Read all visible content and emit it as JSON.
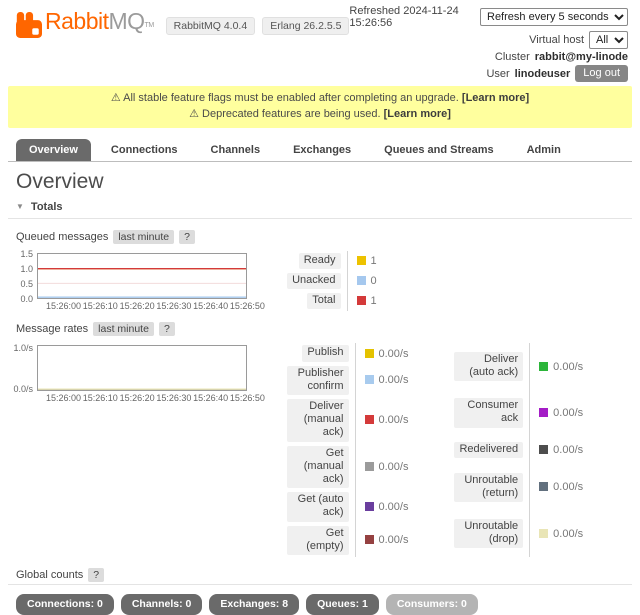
{
  "header": {
    "brand": {
      "rabbit": "Rabbit",
      "mq": "MQ",
      "tm": "TM"
    },
    "version_badges": [
      "RabbitMQ 4.0.4",
      "Erlang 26.2.5.5"
    ],
    "refreshed_label": "Refreshed 2024-11-24 15:26:56",
    "refresh_interval": "Refresh every 5 seconds",
    "virtual_host_label": "Virtual host",
    "virtual_host_value": "All",
    "cluster_label": "Cluster",
    "cluster_value": "rabbit@my-linode",
    "user_label": "User",
    "user_value": "linodeuser",
    "logout_label": "Log out"
  },
  "banner": {
    "warning1_text": "⚠ All stable feature flags must be enabled after completing an upgrade.",
    "warning1_link": "[Learn more]",
    "warning2_text": "⚠ Deprecated features are being used.",
    "warning2_link": "[Learn more]"
  },
  "tabs": [
    {
      "label": "Overview"
    },
    {
      "label": "Connections"
    },
    {
      "label": "Channels"
    },
    {
      "label": "Exchanges"
    },
    {
      "label": "Queues and Streams"
    },
    {
      "label": "Admin"
    }
  ],
  "page_title": "Overview",
  "totals_label": "Totals",
  "queued_section": {
    "title": "Queued messages",
    "range": "last minute",
    "help": "?"
  },
  "rates_section": {
    "title": "Message rates",
    "range": "last minute",
    "help": "?"
  },
  "global_section": {
    "title": "Global counts",
    "help": "?"
  },
  "chart_data": [
    {
      "type": "line",
      "title": "Queued messages",
      "range": "last minute",
      "x_ticks": [
        "15:26:00",
        "15:26:10",
        "15:26:20",
        "15:26:30",
        "15:26:40",
        "15:26:50"
      ],
      "y_ticks": [
        "1.5",
        "1.0",
        "0.5",
        "0.0"
      ],
      "ylim": [
        0,
        1.5
      ],
      "grid_y": [
        0.5,
        1.0
      ],
      "legend_position": "right",
      "series": [
        {
          "name": "Ready",
          "value": 1,
          "display": "1",
          "color": "#edc200"
        },
        {
          "name": "Unacked",
          "value": 0,
          "display": "0",
          "color": "#a5c8ee"
        },
        {
          "name": "Total",
          "value": 1,
          "display": "1",
          "color": "#d43a3a"
        }
      ]
    },
    {
      "type": "line",
      "title": "Message rates",
      "range": "last minute",
      "x_ticks": [
        "15:26:00",
        "15:26:10",
        "15:26:20",
        "15:26:30",
        "15:26:40",
        "15:26:50"
      ],
      "y_ticks": [
        "1.0/s",
        "0.0/s"
      ],
      "ylim": [
        0,
        1
      ],
      "grid_y": [],
      "legend_position": "right",
      "series": [
        {
          "name": "Publish",
          "value": 0,
          "display": "0.00/s",
          "color": "#e4c200"
        },
        {
          "name": "Publisher confirm",
          "value": 0,
          "display": "0.00/s",
          "color": "#a8cbee"
        },
        {
          "name": "Deliver (manual ack)",
          "value": 0,
          "display": "0.00/s",
          "color": "#d43a3a"
        },
        {
          "name": "Get (manual ack)",
          "value": 0,
          "display": "0.00/s",
          "color": "#9b9b9b"
        },
        {
          "name": "Get (auto ack)",
          "value": 0,
          "display": "0.00/s",
          "color": "#6a3e9e"
        },
        {
          "name": "Get (empty)",
          "value": 0,
          "display": "0.00/s",
          "color": "#954141"
        },
        {
          "name": "Deliver (auto ack)",
          "value": 0,
          "display": "0.00/s",
          "color": "#2cb53a"
        },
        {
          "name": "Consumer ack",
          "value": 0,
          "display": "0.00/s",
          "color": "#a41cc6"
        },
        {
          "name": "Redelivered",
          "value": 0,
          "display": "0.00/s",
          "color": "#4d4d4d"
        },
        {
          "name": "Unroutable (return)",
          "value": 0,
          "display": "0.00/s",
          "color": "#62707e"
        },
        {
          "name": "Unroutable (drop)",
          "value": 0,
          "display": "0.00/s",
          "color": "#e9e5b6"
        }
      ]
    }
  ],
  "global_counts": {
    "connections": "Connections: 0",
    "channels": "Channels: 0",
    "exchanges": "Exchanges: 8",
    "queues": "Queues: 1",
    "consumers": "Consumers: 0"
  }
}
